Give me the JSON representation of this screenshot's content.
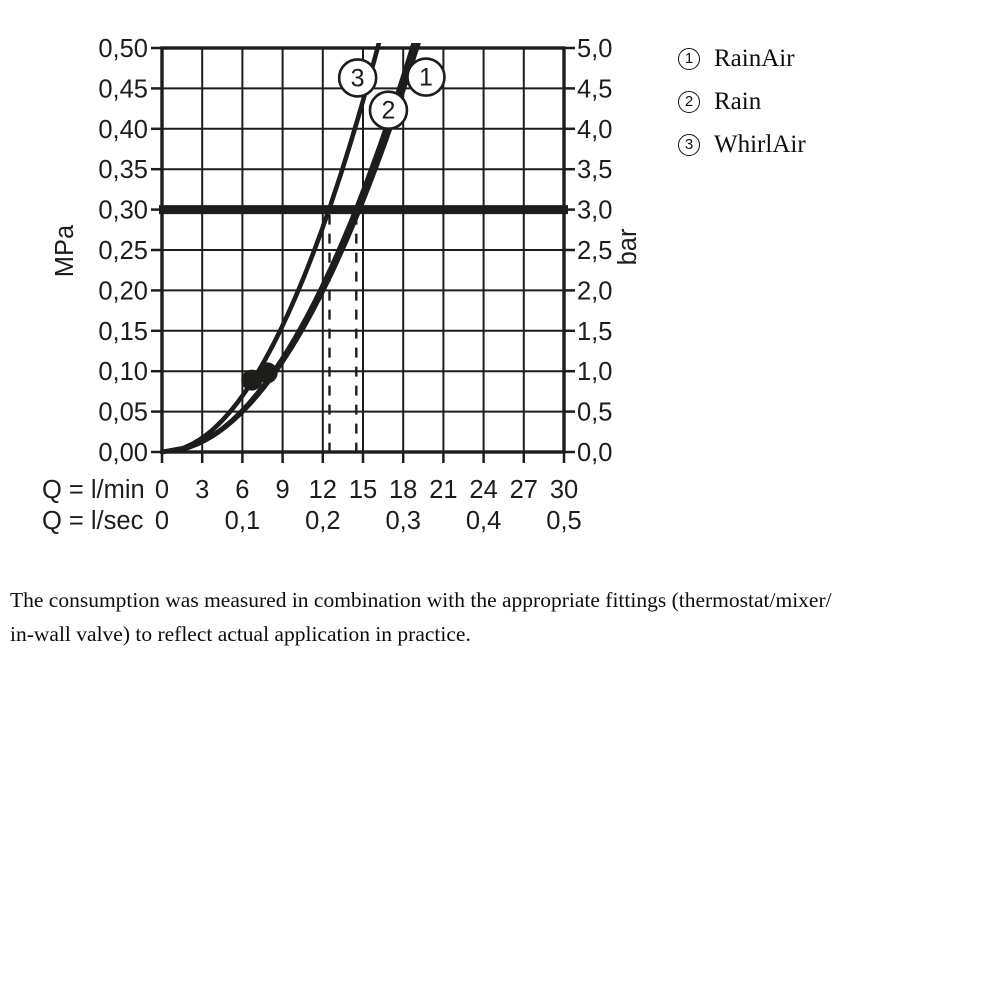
{
  "colors": {
    "ink": "#1d1d1b",
    "text": "#0d0d0d",
    "background": "#ffffff"
  },
  "chart_data": {
    "type": "line",
    "title": "",
    "description": "Shower flow rate vs. water pressure diagram",
    "curve_model": "Q_lmin = k * sqrt(P_MPa)",
    "x_axis": {
      "row1_label": "Q = l/min",
      "row2_label": "Q = l/sec",
      "range_lmin": [
        0,
        30
      ],
      "ticks_lmin": [
        "0",
        "3",
        "6",
        "9",
        "12",
        "15",
        "18",
        "21",
        "24",
        "27",
        "30"
      ],
      "ticks_lsec": [
        {
          "q": 0,
          "text": "0"
        },
        {
          "q": 6,
          "text": "0,1"
        },
        {
          "q": 12,
          "text": "0,2"
        },
        {
          "q": 18,
          "text": "0,3"
        },
        {
          "q": 24,
          "text": "0,4"
        },
        {
          "q": 30,
          "text": "0,5"
        }
      ]
    },
    "y_axis_left": {
      "label": "MPa",
      "range": [
        0,
        0.5
      ],
      "ticks": [
        "0,50",
        "0,45",
        "0,40",
        "0,35",
        "0,30",
        "0,25",
        "0,20",
        "0,15",
        "0,10",
        "0,05",
        "0,00"
      ]
    },
    "y_axis_right": {
      "label": "bar",
      "range": [
        0,
        5
      ],
      "ticks": [
        "5,0",
        "4,5",
        "4,0",
        "3,5",
        "3,0",
        "2,5",
        "2,0",
        "1,5",
        "1,0",
        "0,5",
        "0,0"
      ]
    },
    "reference_line": {
      "value_mpa": 0.3,
      "value_bar": 3.0
    },
    "grid": {
      "x_step_lmin": 3,
      "y_step_mpa": 0.05
    },
    "series": [
      {
        "id": "1",
        "name": "RainAir",
        "k": 26.9,
        "flow_lmin_at_0.1MPa": 8.5,
        "flow_lmin_at_0.3MPa": 14.7,
        "flow_lmin_at_0.5MPa": 19.0,
        "guide_at_3bar": false,
        "label_circle": {
          "q": 19.7,
          "p": 0.464
        }
      },
      {
        "id": "2",
        "name": "Rain",
        "k": 26.4,
        "flow_lmin_at_0.1MPa": 8.3,
        "flow_lmin_at_0.3MPa": 14.5,
        "flow_lmin_at_0.5MPa": 18.7,
        "guide_at_3bar": true,
        "label_circle": {
          "q": 16.9,
          "p": 0.423
        }
      },
      {
        "id": "3",
        "name": "WhirlAir",
        "k": 22.75,
        "flow_lmin_at_0.1MPa": 7.2,
        "flow_lmin_at_0.3MPa": 12.5,
        "flow_lmin_at_0.5MPa": 16.1,
        "guide_at_3bar": true,
        "label_circle": {
          "q": 14.6,
          "p": 0.463
        }
      }
    ],
    "dashed_guides_lmin": [
      12.5,
      14.5
    ],
    "measured_points": [
      {
        "q_lmin": 6.7,
        "p_mpa": 0.089
      },
      {
        "q_lmin": 7.85,
        "p_mpa": 0.098
      }
    ]
  },
  "legend": {
    "items": [
      {
        "num": "1",
        "label": "RainAir"
      },
      {
        "num": "2",
        "label": "Rain"
      },
      {
        "num": "3",
        "label": "WhirlAir"
      }
    ]
  },
  "footnote": {
    "lines": [
      "The consumption was measured in combination with the appropriate fittings (thermostat/mixer/",
      "in-wall valve) to reflect actual application in practice."
    ]
  }
}
